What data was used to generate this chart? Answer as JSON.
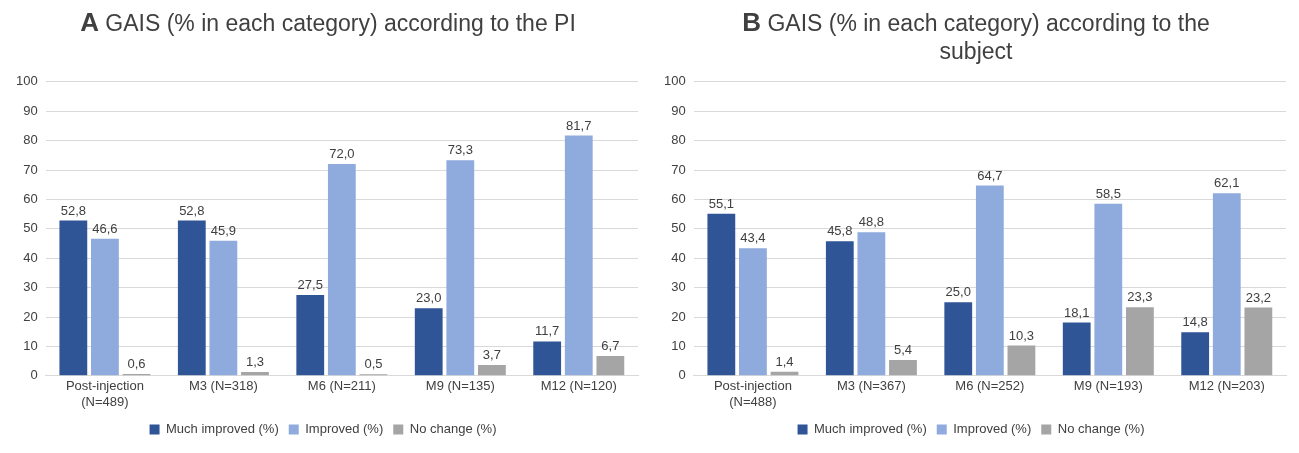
{
  "chart_data": [
    {
      "type": "bar",
      "title": "A GAIS (% in each category) according to the PI",
      "categories": [
        "Post-injection (N=489)",
        "M3 (N=318)",
        "M6 (N=211)",
        "M9 (N=135)",
        "M12 (N=120)"
      ],
      "series": [
        {
          "name": "Much improved (%)",
          "color": "#2f5597",
          "values": [
            52.8,
            52.8,
            27.5,
            23.0,
            11.7
          ],
          "value_labels": [
            "52,8",
            "52,8",
            "27,5",
            "23,0",
            "11,7"
          ]
        },
        {
          "name": "Improved (%)",
          "color": "#8faadc",
          "values": [
            46.6,
            45.9,
            72.0,
            73.3,
            81.7
          ],
          "value_labels": [
            "46,6",
            "45,9",
            "72,0",
            "73,3",
            "81,7"
          ]
        },
        {
          "name": "No change (%)",
          "color": "#a5a5a5",
          "values": [
            0.6,
            1.3,
            0.5,
            3.7,
            6.7
          ],
          "value_labels": [
            "0,6",
            "1,3",
            "0,5",
            "3,7",
            "6,7"
          ]
        }
      ],
      "ylim": [
        0,
        100
      ],
      "yticks": [
        0,
        10,
        20,
        30,
        40,
        50,
        60,
        70,
        80,
        90,
        100
      ],
      "grid": "y",
      "legend": "bottom"
    },
    {
      "type": "bar",
      "title": "B GAIS (% in each category) according to the subject",
      "categories": [
        "Post-injection (N=488)",
        "M3 (N=367)",
        "M6 (N=252)",
        "M9 (N=193)",
        "M12 (N=203)"
      ],
      "series": [
        {
          "name": "Much improved (%)",
          "color": "#2f5597",
          "values": [
            55.1,
            45.8,
            25.0,
            18.1,
            14.8
          ],
          "value_labels": [
            "55,1",
            "45,8",
            "25,0",
            "18,1",
            "14,8"
          ]
        },
        {
          "name": "Improved (%)",
          "color": "#8faadc",
          "values": [
            43.4,
            48.8,
            64.7,
            58.5,
            62.1
          ],
          "value_labels": [
            "43,4",
            "48,8",
            "64,7",
            "58,5",
            "62,1"
          ]
        },
        {
          "name": "No change (%)",
          "color": "#a5a5a5",
          "values": [
            1.4,
            5.4,
            10.3,
            23.3,
            23.2
          ],
          "value_labels": [
            "1,4",
            "5,4",
            "10,3",
            "23,3",
            "23,2"
          ]
        }
      ],
      "ylim": [
        0,
        100
      ],
      "yticks": [
        0,
        10,
        20,
        30,
        40,
        50,
        60,
        70,
        80,
        90,
        100
      ],
      "grid": "y",
      "legend": "bottom"
    }
  ]
}
